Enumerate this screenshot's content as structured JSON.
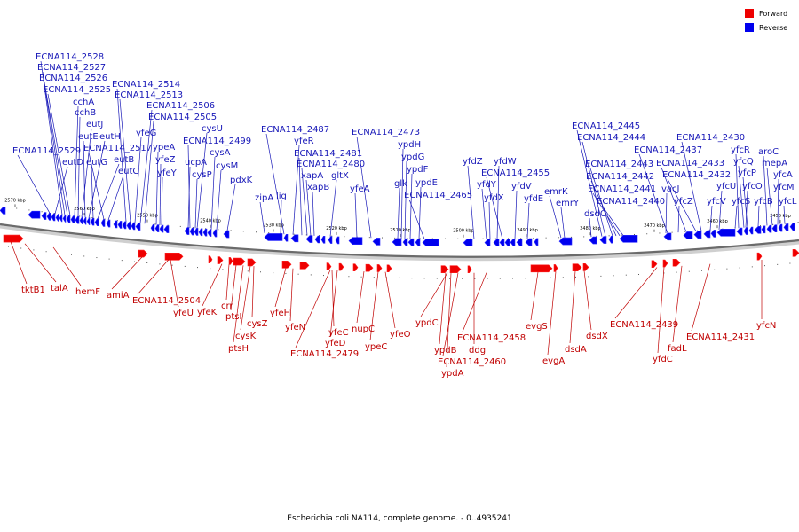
{
  "caption": "Escherichia coli NA114, complete genome. - 0..4935241",
  "legend": {
    "forward": {
      "label": "Forward",
      "color": "#ee0000"
    },
    "reverse": {
      "label": "Reverse",
      "color": "#0000ee"
    }
  },
  "ticks": [
    "2570 kbp",
    "2560 kbp",
    "2550 kbp",
    "2540 kbp",
    "2530 kbp",
    "2520 kbp",
    "2510 kbp",
    "2500 kbp",
    "2490 kbp",
    "2480 kbp",
    "2470 kbp",
    "2460 kbp",
    "2450 kbp"
  ],
  "reverse_genes": [
    "ECNA114_2528",
    "ECNA114_2527",
    "ECNA114_2526",
    "ECNA114_2525",
    "cchA",
    "cchB",
    "eutJ",
    "eutE",
    "eutH",
    "ECNA114_2529",
    "eutD",
    "eutG",
    "eutB",
    "ECNA114_2517",
    "eutC",
    "ECNA114_2514",
    "ECNA114_2513",
    "yfeG",
    "ypeA",
    "yfeZ",
    "yfeY",
    "ECNA114_2506",
    "ECNA114_2505",
    "cysU",
    "ECNA114_2499",
    "cysA",
    "ucpA",
    "cysM",
    "cysP",
    "pdxK",
    "ECNA114_2487",
    "yfeR",
    "zipA",
    "lig",
    "ECNA114_2481",
    "ECNA114_2480",
    "xapA",
    "gltX",
    "xapB",
    "yfeA",
    "ECNA114_2473",
    "ypdH",
    "ypdG",
    "ypdF",
    "glk",
    "ypdE",
    "ECNA114_2465",
    "yfdZ",
    "yfdW",
    "ECNA114_2455",
    "yfdY",
    "yfdV",
    "yfdX",
    "yfdE",
    "emrK",
    "emrY",
    "ECNA114_2445",
    "ECNA114_2444",
    "ECNA114_2443",
    "ECNA114_2442",
    "ECNA114_2441",
    "dsdC",
    "ECNA114_2440",
    "ECNA114_2437",
    "vacJ",
    "ECNA114_2430",
    "ECNA114_2433",
    "ECNA114_2432",
    "yfcZ",
    "yfcR",
    "yfcQ",
    "yfcP",
    "yfcU",
    "yfcV",
    "yfcS",
    "yfcO",
    "aroC",
    "mepA",
    "yfcA",
    "yfcM",
    "yfcB",
    "yfcL"
  ],
  "forward_genes": [
    "tktB1",
    "talA",
    "hemF",
    "amiA",
    "ECNA114_2504",
    "yfeU",
    "yfeK",
    "crr",
    "ptsI",
    "cysZ",
    "cysK",
    "ptsH",
    "yfeH",
    "yfeN",
    "ECNA114_2479",
    "yfeC",
    "yfeD",
    "nupC",
    "ypeC",
    "yfeO",
    "ypdC",
    "ypdB",
    "ECNA114_2460",
    "ypdA",
    "ddg",
    "ECNA114_2458",
    "evgS",
    "evgA",
    "dsdA",
    "dsdX",
    "ECNA114_2439",
    "yfdC",
    "fadL",
    "ECNA114_2431",
    "yfcN"
  ]
}
